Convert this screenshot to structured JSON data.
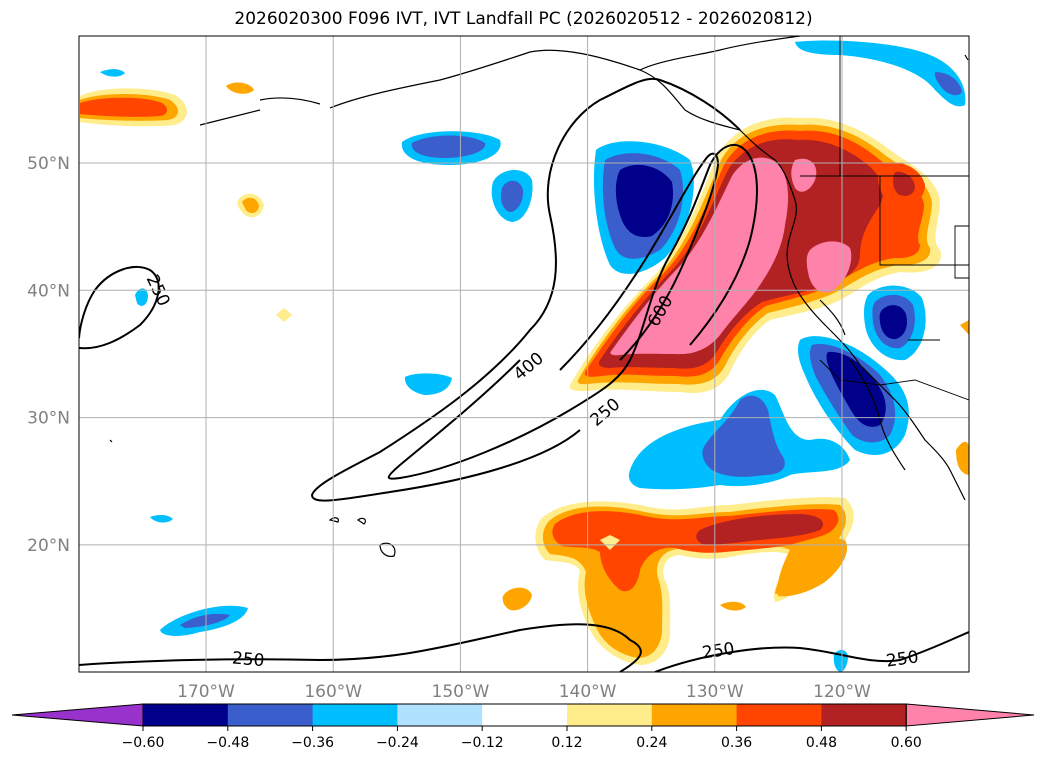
{
  "title": "2026020300 F096 IVT, IVT Landfall PC (2026020512 - 2026020812)",
  "map": {
    "lon_ticks": [
      {
        "label": "170°W",
        "value": -170
      },
      {
        "label": "160°W",
        "value": -160
      },
      {
        "label": "150°W",
        "value": -150
      },
      {
        "label": "140°W",
        "value": -140
      },
      {
        "label": "130°W",
        "value": -130
      },
      {
        "label": "120°W",
        "value": -120
      }
    ],
    "lat_ticks": [
      {
        "label": "50°N",
        "value": 50
      },
      {
        "label": "40°N",
        "value": 40
      },
      {
        "label": "30°N",
        "value": 30
      },
      {
        "label": "20°N",
        "value": 20
      }
    ],
    "ivt_contour_labels": [
      "250",
      "400",
      "600",
      "250",
      "250",
      "250",
      "250"
    ]
  },
  "colorbar": {
    "ticks": [
      "−0.60",
      "−0.48",
      "−0.36",
      "−0.24",
      "−0.12",
      "0.12",
      "0.24",
      "0.36",
      "0.48",
      "0.60"
    ],
    "colors": [
      "#9932cc",
      "#00008b",
      "#3a5fcd",
      "#00bfff",
      "#b0e2ff",
      "#ffffff",
      "#ffec8b",
      "#ffa500",
      "#ff4500",
      "#b22222",
      "#ff82ab"
    ]
  }
}
